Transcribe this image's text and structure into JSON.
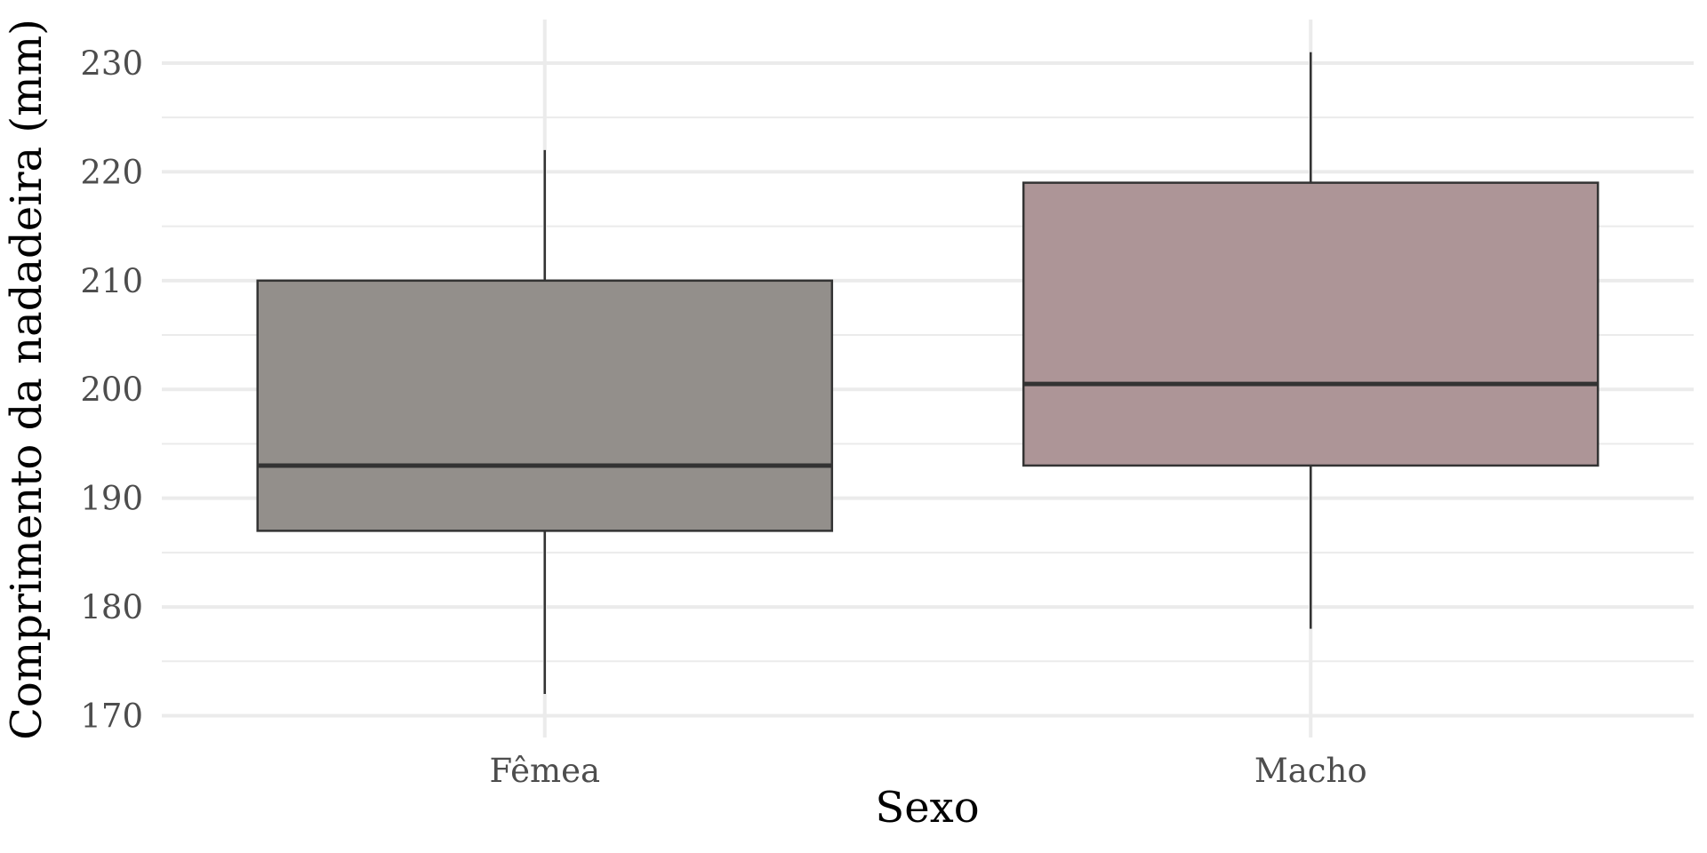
{
  "chart_data": {
    "type": "boxplot",
    "title": "",
    "xlabel": "Sexo",
    "ylabel": "Comprimento da nadadeira (mm)",
    "ylim": [
      168,
      234
    ],
    "yticks": [
      170,
      180,
      190,
      200,
      210,
      220,
      230
    ],
    "y_minor_ticks": [
      175,
      185,
      195,
      205,
      215,
      225
    ],
    "grid": true,
    "legend": "none",
    "categories": [
      "Fêmea",
      "Macho"
    ],
    "boxes": [
      {
        "category": "Fêmea",
        "min": 172,
        "q1": 187,
        "median": 193,
        "q3": 210,
        "max": 222,
        "color": "#938f8b"
      },
      {
        "category": "Macho",
        "min": 178,
        "q1": 193,
        "median": 200.5,
        "q3": 219,
        "max": 231,
        "color": "#ad9597"
      }
    ],
    "colors": {
      "grid": "#ebebeb",
      "outline": "#333333",
      "tick_text": "#4d4d4d",
      "title_text": "#000000"
    }
  }
}
